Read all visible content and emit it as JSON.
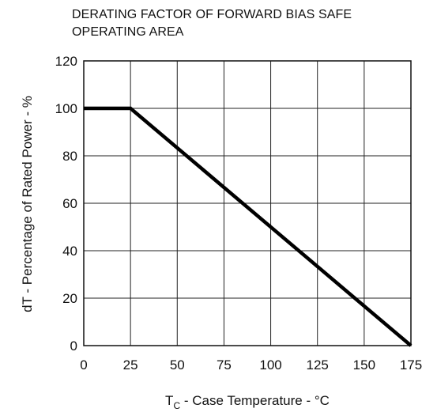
{
  "chart_data": {
    "type": "line",
    "title_line1": "DERATING FACTOR OF FORWARD BIAS SAFE",
    "title_line2": "OPERATING AREA",
    "ylabel": "dT - Percentage of Rated Power - %",
    "xlabel_symbol": "T",
    "xlabel_subscript": "C",
    "xlabel_rest": " - Case Temperature - °C",
    "xlim": [
      0,
      175
    ],
    "ylim": [
      0,
      120
    ],
    "xticks": [
      0,
      25,
      50,
      75,
      100,
      125,
      150,
      175
    ],
    "yticks": [
      0,
      20,
      40,
      60,
      80,
      100,
      120
    ],
    "grid": true,
    "series": [
      {
        "x": [
          0,
          25,
          175
        ],
        "y": [
          100,
          100,
          0
        ],
        "color": "#000000"
      }
    ]
  }
}
